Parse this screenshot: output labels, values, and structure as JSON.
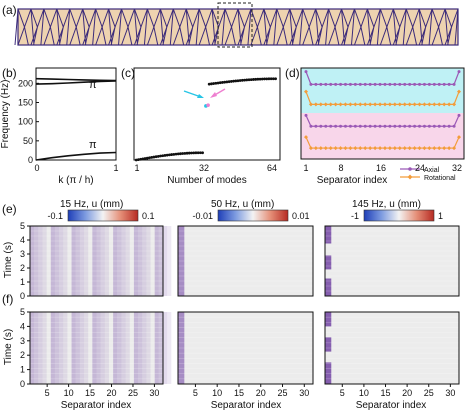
{
  "panel_labels": [
    "(a)",
    "(b)",
    "(c)",
    "(d)",
    "(e)",
    "(f)"
  ],
  "colors": {
    "strip_fill": "#eed3b0",
    "strip_line": "#3b2a7a",
    "axial": "#9b59b6",
    "rotational": "#f39c3a",
    "band_cyan": "#bff1f5",
    "band_pink": "#f8d6ea",
    "arrow_cyan": "#27c5e6",
    "arrow_pink": "#ee7fd0",
    "heat_low": "#2b55c8",
    "heat_mid": "#f3f3f3",
    "heat_high": "#c8352f",
    "stripe_purple": "#a58cc4"
  },
  "chart_data": [
    {
      "id": "b",
      "type": "line",
      "title": "",
      "xlabel": "k (π / h)",
      "ylabel": "Frequency (Hz)",
      "xlim": [
        0,
        1
      ],
      "ylim": [
        0,
        240
      ],
      "xticks": [
        "0",
        "1"
      ],
      "yticks": [
        0,
        50,
        100,
        150,
        200
      ],
      "annotations": [
        "π",
        "π"
      ],
      "series": [
        {
          "x": [
            0,
            0.2,
            0.4,
            0.6,
            0.8,
            1
          ],
          "y": [
            0,
            6,
            11,
            15,
            18,
            19.5
          ]
        },
        {
          "x": [
            0,
            0.2,
            0.4,
            0.6,
            0.8,
            1
          ],
          "y": [
            198,
            199,
            201,
            203,
            205,
            206
          ]
        },
        {
          "x": [
            0,
            0.2,
            0.4,
            0.6,
            0.8,
            1
          ],
          "y": [
            212,
            211,
            210,
            209,
            208,
            207
          ]
        }
      ]
    },
    {
      "id": "c",
      "type": "scatter",
      "title": "",
      "xlabel": "Number of modes",
      "ylabel": "",
      "xlim": [
        0,
        66
      ],
      "ylim": [
        0,
        240
      ],
      "xticks": [
        1,
        32,
        64
      ],
      "low_branch": {
        "x_start": 1,
        "x_end": 31,
        "y_start": 0,
        "y_end": 19
      },
      "high_branch": {
        "x_start": 34,
        "x_end": 64,
        "y_start": 198,
        "y_end": 212
      },
      "isolated_points": [
        {
          "x": 32.5,
          "y": 141
        },
        {
          "x": 33.5,
          "y": 143
        }
      ]
    },
    {
      "id": "d",
      "type": "line",
      "title": "",
      "xlabel": "Separator index",
      "ylabel": "",
      "xlim": [
        1,
        32
      ],
      "xticks": [
        1,
        8,
        16,
        24,
        32
      ],
      "legend": [
        "Axial",
        "Rotational"
      ],
      "legend_position": "bottom-right",
      "series": [
        {
          "name": "Axial",
          "band": "cyan",
          "level": 0.82,
          "end_level": 0.96
        },
        {
          "name": "Rotational",
          "band": "cyan",
          "level": 0.6,
          "end_level": 0.74
        },
        {
          "name": "Axial",
          "band": "pink",
          "level": 0.36,
          "end_level": 0.48
        },
        {
          "name": "Rotational",
          "band": "pink",
          "level": 0.12,
          "end_level": 0.24
        }
      ]
    },
    {
      "id": "e-f",
      "type": "heatmap",
      "xlabel": "Separator index",
      "ylabel": "Time (s)",
      "xticks": [
        5,
        10,
        15,
        20,
        25,
        30
      ],
      "yticks": [
        0,
        1,
        2,
        3,
        4,
        5
      ],
      "xlim": [
        1,
        32
      ],
      "ylim": [
        0,
        5
      ],
      "colorbars": [
        {
          "title": "15 Hz, u (mm)",
          "min": "-0.1",
          "max": "0.1"
        },
        {
          "title": "50 Hz, u (mm)",
          "min": "-0.01",
          "max": "0.01"
        },
        {
          "title": "145 Hz, u (mm)",
          "min": "-1",
          "max": "1"
        }
      ],
      "stripe_columns_15hz": [
        1,
        6,
        11,
        16,
        21,
        26,
        31
      ],
      "stripe_columns_50hz": [
        1
      ],
      "stripe_columns_145hz": [
        1
      ]
    }
  ]
}
